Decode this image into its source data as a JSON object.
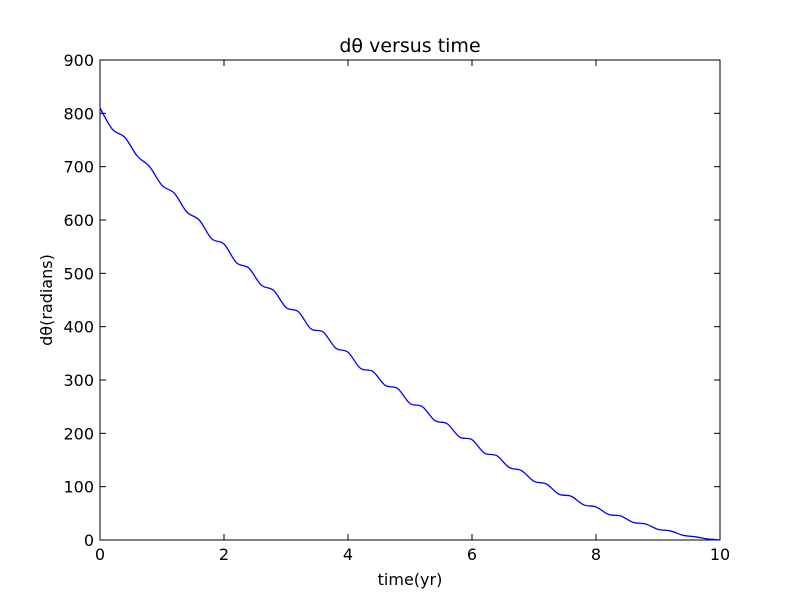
{
  "chart_data": {
    "type": "line",
    "title": "dθ versus time",
    "xlabel": "time(yr)",
    "ylabel": "dθ(radians)",
    "xlim": [
      0,
      10
    ],
    "ylim": [
      0,
      900
    ],
    "xticks": [
      0,
      2,
      4,
      6,
      8,
      10
    ],
    "yticks": [
      0,
      100,
      200,
      300,
      400,
      500,
      600,
      700,
      800,
      900
    ],
    "grid": false,
    "legend": "none",
    "series": [
      {
        "color": "#0000ff",
        "x": [
          0,
          0.2,
          0.4,
          0.6,
          0.8,
          1.0,
          1.2,
          1.4,
          1.6,
          1.8,
          2.0,
          2.2,
          2.4,
          2.6,
          2.8,
          3.0,
          3.2,
          3.4,
          3.6,
          3.8,
          4.0,
          4.2,
          4.4,
          4.6,
          4.8,
          5.0,
          5.2,
          5.4,
          5.6,
          5.8,
          6.0,
          6.2,
          6.4,
          6.6,
          6.8,
          7.0,
          7.2,
          7.4,
          7.6,
          7.8,
          8.0,
          8.2,
          8.4,
          8.6,
          8.8,
          9.0,
          9.2,
          9.4,
          9.6,
          9.8,
          10.0
        ],
        "y": [
          810,
          770,
          755,
          720,
          700,
          665,
          650,
          615,
          600,
          565,
          555,
          520,
          510,
          478,
          468,
          436,
          428,
          396,
          390,
          360,
          352,
          322,
          316,
          290,
          284,
          256,
          250,
          224,
          218,
          193,
          188,
          163,
          158,
          136,
          130,
          110,
          105,
          86,
          82,
          66,
          62,
          48,
          45,
          33,
          30,
          20,
          17,
          9,
          6,
          2,
          0
        ]
      }
    ]
  }
}
